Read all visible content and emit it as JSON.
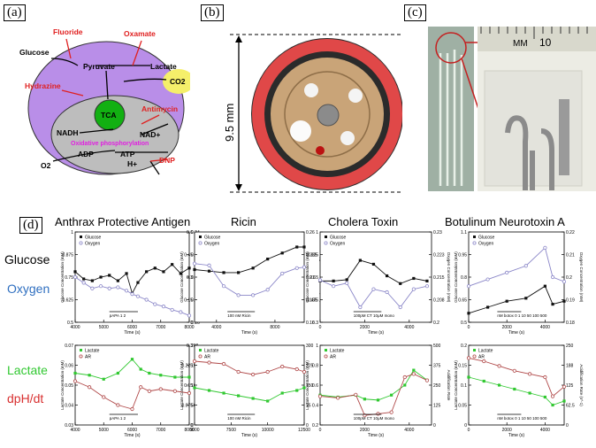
{
  "panels": {
    "a": {
      "label": "(a)",
      "inhibitors": [
        "Fluoride",
        "Oxamate",
        "Hydrazine",
        "Antimycin",
        "DNP"
      ],
      "metabolites": [
        "Glucose",
        "Pyruvate",
        "Lactate",
        "CO2",
        "TCA",
        "NADH",
        "NAD+",
        "ADP",
        "ATP",
        "H+",
        "O2"
      ],
      "process": "Oxidative phosphorylation",
      "colors": {
        "membrane": "#b98ee8",
        "cytoplasm": "#ffffff",
        "mito": "#bdbdbd",
        "tca": "#12b012",
        "co2": "#f5ef6a",
        "inhibitor": "#e02020",
        "process": "#e020e0"
      }
    },
    "b": {
      "label": "(b)",
      "scale": "9.5 mm"
    },
    "c": {
      "label": "(c)",
      "ruler_mm": "MM",
      "ruler_10": "10"
    },
    "d": {
      "label": "(d)",
      "columns": [
        "Anthrax Protective Antigen",
        "Ricin",
        "Cholera Toxin",
        "Botulinum Neurotoxin A"
      ],
      "rows": {
        "glucose": "Glucose",
        "oxygen": "Oxygen",
        "lactate": "Lactate",
        "dphdt": "dpH/dt"
      },
      "row_colors": {
        "glucose": "#000000",
        "oxygen": "#2f6fc0",
        "lactate": "#31c831",
        "dphdt": "#d83030"
      }
    }
  },
  "chart_data": [
    {
      "type": "line",
      "title": "Anthrax Protective Antigen",
      "xlabel": "Time (s)",
      "ylabel": "Glucose Concentration (mM)",
      "y2label": "Oxygen Concentration (mM)",
      "xlim": [
        4000,
        8000
      ],
      "xticks": [
        4000,
        5000,
        6000,
        7000,
        8000
      ],
      "ylim": [
        0.5,
        1.0
      ],
      "y2lim": [
        0.16,
        0.24
      ],
      "series": [
        {
          "name": "Glucose",
          "axis": "y",
          "color": "#111111",
          "marker": "square",
          "x": [
            4000,
            4300,
            4600,
            4900,
            5200,
            5500,
            5800,
            6000,
            6200,
            6500,
            6800,
            7100,
            7400,
            7700,
            8000
          ],
          "values": [
            0.78,
            0.74,
            0.73,
            0.75,
            0.76,
            0.73,
            0.77,
            0.66,
            0.72,
            0.78,
            0.8,
            0.78,
            0.82,
            0.77,
            0.8
          ]
        },
        {
          "name": "Oxygen",
          "axis": "y2",
          "color": "#8a86c8",
          "marker": "circle",
          "x": [
            4000,
            4300,
            4600,
            4900,
            5200,
            5500,
            5800,
            6000,
            6200,
            6500,
            6800,
            7100,
            7400,
            7700,
            8000
          ],
          "values": [
            0.2,
            0.195,
            0.19,
            0.192,
            0.19,
            0.191,
            0.188,
            0.185,
            0.183,
            0.18,
            0.176,
            0.174,
            0.171,
            0.169,
            0.166
          ]
        }
      ],
      "annotations": [
        "pAPA",
        "1",
        "2"
      ]
    },
    {
      "type": "line",
      "title": "Ricin",
      "xlabel": "Time (s)",
      "ylabel": "Glucose Concentration (mM)",
      "y2label": "Oxygen Concentration (mM)",
      "xlim": [
        2500,
        10000
      ],
      "xticks": [
        4000,
        8000
      ],
      "ylim": [
        0,
        0.6
      ],
      "y2lim": [
        0.16,
        0.26
      ],
      "series": [
        {
          "name": "Glucose",
          "axis": "y",
          "color": "#111111",
          "marker": "square",
          "x": [
            2500,
            3500,
            4500,
            5500,
            6500,
            7500,
            8500,
            9500,
            10000
          ],
          "values": [
            0.35,
            0.34,
            0.33,
            0.33,
            0.36,
            0.42,
            0.46,
            0.5,
            0.5
          ]
        },
        {
          "name": "Oxygen",
          "axis": "y2",
          "color": "#8a86c8",
          "marker": "circle",
          "x": [
            2500,
            3500,
            4500,
            5500,
            6500,
            7500,
            8500,
            9500,
            10000
          ],
          "values": [
            0.225,
            0.223,
            0.2,
            0.19,
            0.19,
            0.196,
            0.214,
            0.22,
            0.221
          ]
        }
      ],
      "annotations": [
        "100 nM Ricin"
      ]
    },
    {
      "type": "line",
      "title": "Cholera Toxin",
      "xlabel": "Time (s)",
      "ylabel": "Glucose Concentration (mM)",
      "y2label": "Oxygen Concentration (mM)",
      "xlim": [
        0,
        5000
      ],
      "xticks": [
        0,
        2000,
        4000
      ],
      "ylim": [
        0.3,
        1.0
      ],
      "y2lim": [
        0.2,
        0.23
      ],
      "series": [
        {
          "name": "Glucose",
          "axis": "y",
          "color": "#111111",
          "marker": "square",
          "x": [
            0,
            600,
            1200,
            1800,
            2400,
            3000,
            3600,
            4200,
            4800
          ],
          "values": [
            0.62,
            0.62,
            0.63,
            0.78,
            0.75,
            0.66,
            0.6,
            0.64,
            0.62
          ]
        },
        {
          "name": "Oxygen",
          "axis": "y2",
          "color": "#8a86c8",
          "marker": "circle",
          "x": [
            0,
            600,
            1200,
            1800,
            2400,
            3000,
            3600,
            4200,
            4800
          ],
          "values": [
            0.214,
            0.212,
            0.213,
            0.205,
            0.211,
            0.21,
            0.205,
            0.211,
            0.212
          ]
        }
      ],
      "annotations": [
        "100pM CT",
        "10μM mono"
      ]
    },
    {
      "type": "line",
      "title": "Botulinum Neurotoxin A",
      "xlabel": "Time (s)",
      "ylabel": "Glucose Concentration (mM)",
      "y2label": "Oxygen Concentration (mM)",
      "xlim": [
        0,
        5000
      ],
      "xticks": [
        0,
        2000,
        4000
      ],
      "ylim": [
        0.5,
        1.1
      ],
      "y2lim": [
        0.18,
        0.22
      ],
      "series": [
        {
          "name": "Glucose",
          "axis": "y",
          "color": "#111111",
          "marker": "square",
          "x": [
            0,
            1000,
            2000,
            3000,
            4000,
            4400,
            5000
          ],
          "values": [
            0.56,
            0.6,
            0.64,
            0.66,
            0.74,
            0.62,
            0.64
          ]
        },
        {
          "name": "Oxygen",
          "axis": "y2",
          "color": "#8a86c8",
          "marker": "circle",
          "x": [
            0,
            1000,
            2000,
            3000,
            4000,
            4400,
            5000
          ],
          "values": [
            0.196,
            0.199,
            0.202,
            0.205,
            0.213,
            0.2,
            0.198
          ]
        }
      ],
      "annotations": [
        "nM botox",
        "0",
        "1",
        "10",
        "50",
        "100",
        "500"
      ]
    },
    {
      "type": "line",
      "title": "",
      "xlabel": "Time (s)",
      "ylabel": "Lactate Concentration (mM)",
      "y2label": "Acidification Rate",
      "xlim": [
        4000,
        8000
      ],
      "xticks": [
        4000,
        5000,
        6000,
        7000,
        8000
      ],
      "ylim": [
        0.03,
        0.07
      ],
      "y2lim": [
        0,
        200
      ],
      "series": [
        {
          "name": "Lactate",
          "axis": "y",
          "color": "#31c831",
          "marker": "square",
          "x": [
            4000,
            4500,
            5000,
            5500,
            6000,
            6300,
            6600,
            7000,
            7500,
            8000
          ],
          "values": [
            0.056,
            0.055,
            0.053,
            0.056,
            0.063,
            0.058,
            0.056,
            0.055,
            0.054,
            0.054
          ]
        },
        {
          "name": "AR",
          "axis": "y2",
          "color": "#b04848",
          "marker": "circle",
          "x": [
            4000,
            4500,
            5000,
            5500,
            6000,
            6300,
            6600,
            7000,
            7500,
            8000
          ],
          "values": [
            110,
            95,
            70,
            50,
            40,
            95,
            85,
            90,
            85,
            80
          ]
        }
      ],
      "annotations": [
        "pAPA",
        "1",
        "2"
      ]
    },
    {
      "type": "line",
      "title": "",
      "xlabel": "Time (s)",
      "ylabel": "Lactate Concentration (mM)",
      "y2label": "Acidification Rate (s^-1)",
      "xlim": [
        5000,
        12500
      ],
      "xticks": [
        5000,
        7500,
        10000,
        12500
      ],
      "ylim": [
        0,
        0.3
      ],
      "y2lim": [
        0,
        300
      ],
      "series": [
        {
          "name": "Lactate",
          "axis": "y",
          "color": "#31c831",
          "marker": "square",
          "x": [
            5000,
            6000,
            7000,
            8000,
            9000,
            10000,
            11000,
            12000,
            12500
          ],
          "values": [
            0.14,
            0.13,
            0.12,
            0.11,
            0.1,
            0.09,
            0.12,
            0.13,
            0.14
          ]
        },
        {
          "name": "AR",
          "axis": "y2",
          "color": "#b04848",
          "marker": "circle",
          "x": [
            5000,
            6000,
            7000,
            8000,
            9000,
            10000,
            11000,
            12000,
            12500
          ],
          "values": [
            240,
            235,
            230,
            200,
            190,
            200,
            220,
            210,
            200
          ]
        }
      ],
      "annotations": [
        "100 nM Ricin"
      ]
    },
    {
      "type": "line",
      "title": "",
      "xlabel": "Time (s)",
      "ylabel": "Lactate Concentration (mM)",
      "y2label": "Acidification Rate",
      "xlim": [
        0,
        5000
      ],
      "xticks": [
        0,
        2000,
        4000
      ],
      "ylim": [
        0.2,
        1.0
      ],
      "y2lim": [
        0,
        500
      ],
      "series": [
        {
          "name": "Lactate",
          "axis": "y",
          "color": "#31c831",
          "marker": "square",
          "x": [
            0,
            800,
            1600,
            2000,
            2600,
            3200,
            3800,
            4200,
            4800
          ],
          "values": [
            0.5,
            0.48,
            0.5,
            0.46,
            0.45,
            0.5,
            0.6,
            0.75,
            0.65
          ]
        },
        {
          "name": "AR",
          "axis": "y2",
          "color": "#b04848",
          "marker": "circle",
          "x": [
            0,
            800,
            1600,
            2000,
            2600,
            3200,
            3800,
            4200,
            4800
          ],
          "values": [
            180,
            170,
            190,
            60,
            70,
            80,
            300,
            320,
            280
          ]
        }
      ],
      "annotations": [
        "100pM CT",
        "10μM mono"
      ]
    },
    {
      "type": "line",
      "title": "",
      "xlabel": "Time (s)",
      "ylabel": "Lactate Concentration (mM)",
      "y2label": "Acidification Rate (s^-1)",
      "xlim": [
        0,
        5000
      ],
      "xticks": [
        0,
        2000,
        4000
      ],
      "ylim": [
        0,
        0.2
      ],
      "y2lim": [
        0,
        250
      ],
      "series": [
        {
          "name": "Lactate",
          "axis": "y",
          "color": "#31c831",
          "marker": "square",
          "x": [
            0,
            800,
            1600,
            2400,
            3200,
            4000,
            4400,
            5000
          ],
          "values": [
            0.12,
            0.11,
            0.1,
            0.09,
            0.08,
            0.07,
            0.05,
            0.06
          ]
        },
        {
          "name": "AR",
          "axis": "y2",
          "color": "#b04848",
          "marker": "circle",
          "x": [
            0,
            800,
            1600,
            2400,
            3200,
            4000,
            4400,
            5000
          ],
          "values": [
            210,
            200,
            185,
            170,
            160,
            150,
            90,
            120
          ]
        }
      ],
      "annotations": [
        "nM botox",
        "0",
        "1",
        "10",
        "50",
        "100",
        "500"
      ]
    }
  ]
}
